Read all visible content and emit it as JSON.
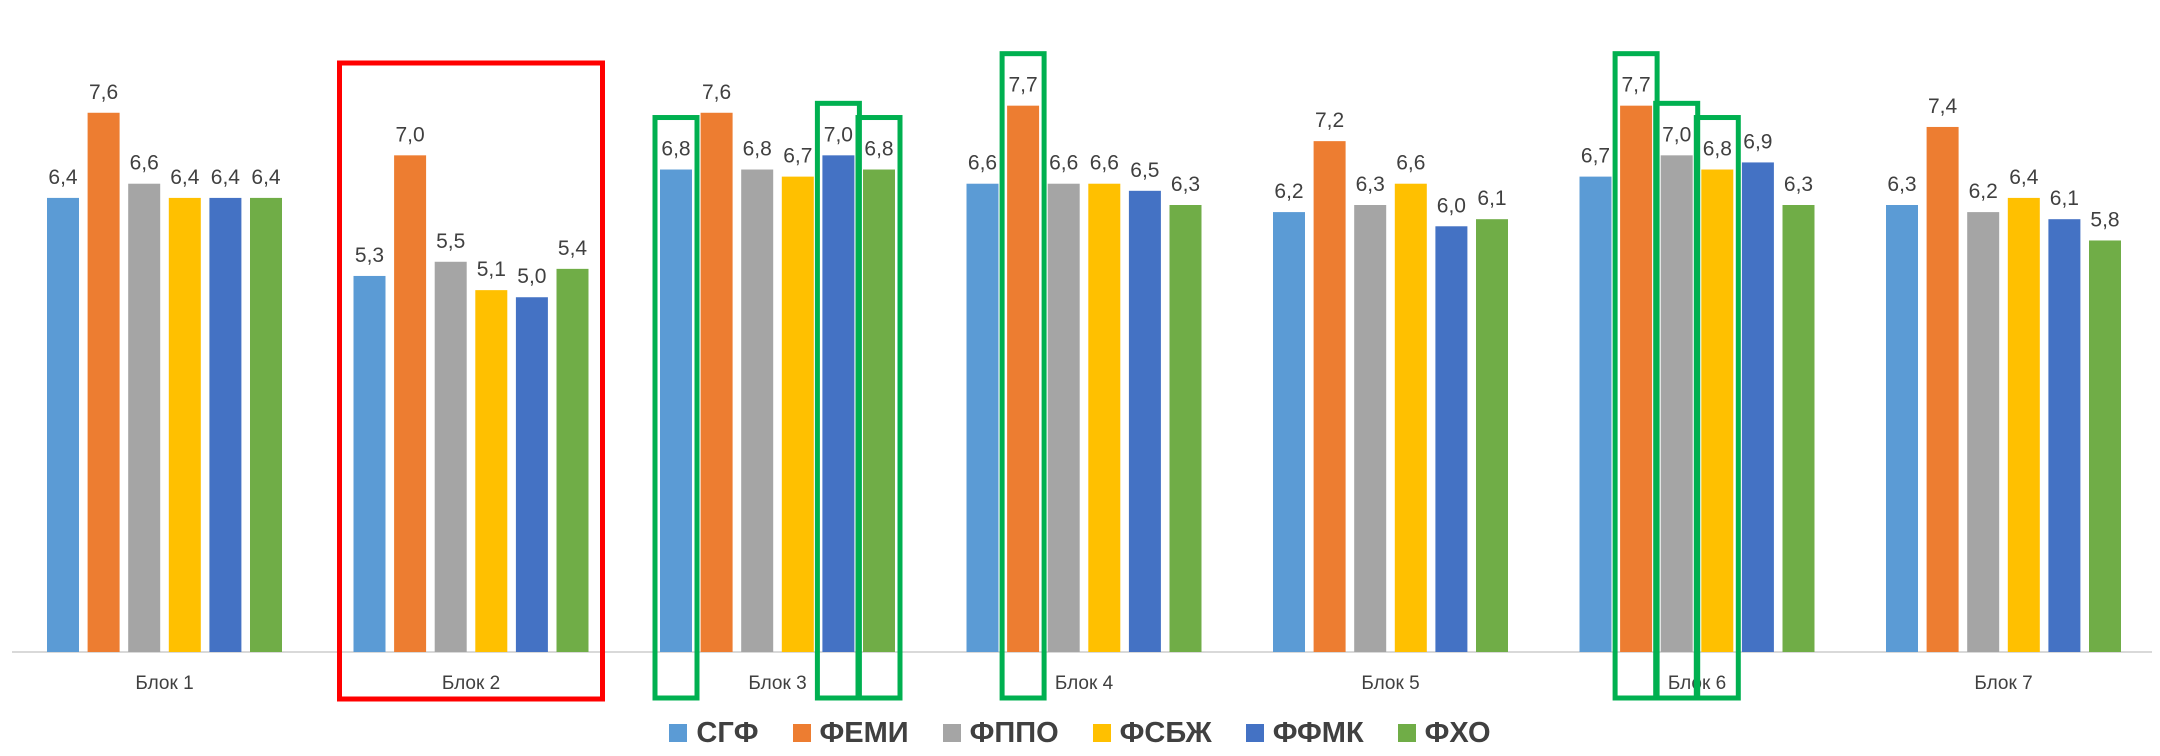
{
  "chart_data": {
    "type": "bar",
    "categories": [
      "Блок 1",
      "Блок 2",
      "Блок 3",
      "Блок 4",
      "Блок 5",
      "Блок 6",
      "Блок 7"
    ],
    "series": [
      {
        "name": "СГФ",
        "color": "#5B9BD5",
        "values": [
          6.4,
          5.3,
          6.8,
          6.6,
          6.2,
          6.7,
          6.3
        ],
        "labels": [
          "6,4",
          "5,3",
          "6,8",
          "6,6",
          "6,2",
          "6,7",
          "6,3"
        ]
      },
      {
        "name": "ФЕМИ",
        "color": "#ED7D31",
        "values": [
          7.6,
          7.0,
          7.6,
          7.7,
          7.2,
          7.7,
          7.4
        ],
        "labels": [
          "7,6",
          "7,0",
          "7,6",
          "7,7",
          "7,2",
          "7,7",
          "7,4"
        ]
      },
      {
        "name": "ФППО",
        "color": "#A5A5A5",
        "values": [
          6.6,
          5.5,
          6.8,
          6.6,
          6.3,
          7.0,
          6.2
        ],
        "labels": [
          "6,6",
          "5,5",
          "6,8",
          "6,6",
          "6,3",
          "7,0",
          "6,2"
        ]
      },
      {
        "name": "ФСБЖ",
        "color": "#FFC000",
        "values": [
          6.4,
          5.1,
          6.7,
          6.6,
          6.6,
          6.8,
          6.4
        ],
        "labels": [
          "6,4",
          "5,1",
          "6,7",
          "6,6",
          "6,6",
          "6,8",
          "6,4"
        ]
      },
      {
        "name": "ФФМК",
        "color": "#4472C4",
        "values": [
          6.4,
          5.0,
          7.0,
          6.5,
          6.0,
          6.9,
          6.1
        ],
        "labels": [
          "6,4",
          "5,0",
          "7,0",
          "6,5",
          "6,0",
          "6,9",
          "6,1"
        ]
      },
      {
        "name": "ФХО",
        "color": "#70AD47",
        "values": [
          6.4,
          5.4,
          6.8,
          6.3,
          6.1,
          6.3,
          5.8
        ],
        "labels": [
          "6,4",
          "5,4",
          "6,8",
          "6,3",
          "6,1",
          "6,3",
          "5,8"
        ]
      }
    ],
    "ylim": [
      0,
      8.4
    ],
    "grid": false,
    "legend_position": "bottom",
    "title": "",
    "xlabel": "",
    "ylabel": "",
    "highlights": [
      {
        "category": "Блок 2",
        "scope": "category",
        "color": "#FF0000"
      },
      {
        "category": "Блок 3",
        "series": "СГФ",
        "color": "#00B050"
      },
      {
        "category": "Блок 3",
        "series": "ФФМК",
        "color": "#00B050"
      },
      {
        "category": "Блок 3",
        "series": "ФХО",
        "color": "#00B050"
      },
      {
        "category": "Блок 4",
        "series": "ФЕМИ",
        "color": "#00B050"
      },
      {
        "category": "Блок 6",
        "series": "ФЕМИ",
        "color": "#00B050"
      },
      {
        "category": "Блок 6",
        "series": "ФППО",
        "color": "#00B050"
      },
      {
        "category": "Блок 6",
        "series": "ФСБЖ",
        "color": "#00B050"
      }
    ]
  }
}
